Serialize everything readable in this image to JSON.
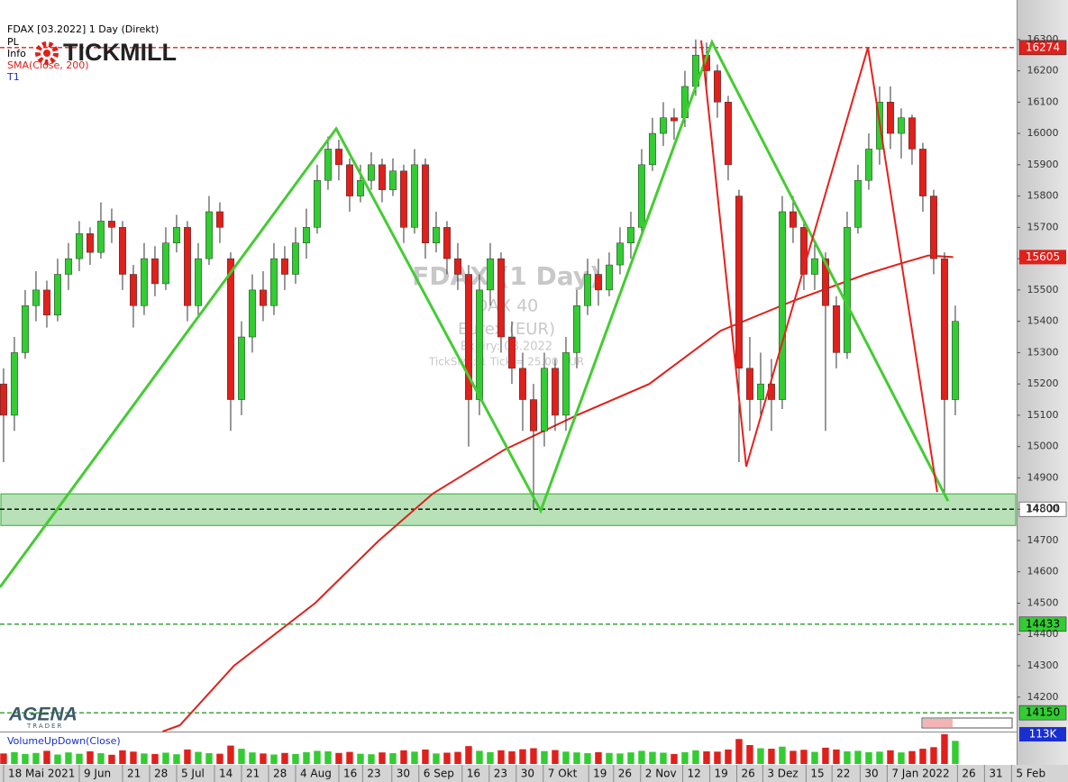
{
  "chart_data": {
    "type": "candlestick",
    "title": "FDAX [03.2022] 1 Day (Direkt)",
    "header_lines": [
      {
        "text": "PL",
        "color": "#000000"
      },
      {
        "text": "Info",
        "color": "#000000"
      },
      {
        "text": "SMA(Close, 200)",
        "color": "#e0201b"
      },
      {
        "text": "T1",
        "color": "#1a2fd0"
      }
    ],
    "logos": [
      "TICKMILL",
      "AGENA",
      "TRADER"
    ],
    "watermark": [
      "FDAX (1 Day)",
      "DAX 40",
      "Eurex (EUR)",
      "Expiry: 03.2022",
      "TickSize: 1 Tick = 25.00 EUR"
    ],
    "up_color": "#33cc33",
    "down_color": "#e0201b",
    "xlim": [
      -0.33,
      93.67
    ],
    "ylim": [
      14090,
      16426
    ],
    "yticks": [
      14200,
      14300,
      14400,
      14500,
      14600,
      14700,
      14800,
      14900,
      15000,
      15100,
      15200,
      15300,
      15400,
      15500,
      15600,
      15700,
      15800,
      15900,
      16000,
      16100,
      16200,
      16300
    ],
    "xticks": [
      {
        "value": 0,
        "label": "18 Mai 2021"
      },
      {
        "value": 7,
        "label": "9 Jun"
      },
      {
        "value": 11,
        "label": "21"
      },
      {
        "value": 13.5,
        "label": "28"
      },
      {
        "value": 16,
        "label": "5 Jul"
      },
      {
        "value": 19.5,
        "label": "14"
      },
      {
        "value": 22,
        "label": "21"
      },
      {
        "value": 24.5,
        "label": "28"
      },
      {
        "value": 27,
        "label": "4 Aug"
      },
      {
        "value": 31,
        "label": "16"
      },
      {
        "value": 33.2,
        "label": "23"
      },
      {
        "value": 35.9,
        "label": "30"
      },
      {
        "value": 38.4,
        "label": "6 Sep"
      },
      {
        "value": 42.4,
        "label": "16"
      },
      {
        "value": 44.9,
        "label": "23"
      },
      {
        "value": 47.4,
        "label": "30"
      },
      {
        "value": 49.9,
        "label": "7 Okt"
      },
      {
        "value": 54.1,
        "label": "19"
      },
      {
        "value": 56.4,
        "label": "26"
      },
      {
        "value": 58.9,
        "label": "2 Nov"
      },
      {
        "value": 62.8,
        "label": "12"
      },
      {
        "value": 65.3,
        "label": "19"
      },
      {
        "value": 67.8,
        "label": "26"
      },
      {
        "value": 70.2,
        "label": "3 Dez"
      },
      {
        "value": 74.2,
        "label": "15"
      },
      {
        "value": 76.6,
        "label": "22"
      },
      {
        "value": 79.2,
        "label": "30"
      },
      {
        "value": 81.7,
        "label": "7 Jan 2022"
      },
      {
        "value": 88.2,
        "label": "26"
      },
      {
        "value": 90.7,
        "label": "31"
      },
      {
        "value": 93.2,
        "label": "5 Feb"
      }
    ],
    "candles": [
      [
        15200,
        15250,
        14950,
        15100
      ],
      [
        15100,
        15350,
        15050,
        15300
      ],
      [
        15300,
        15500,
        15280,
        15450
      ],
      [
        15450,
        15560,
        15400,
        15500
      ],
      [
        15500,
        15530,
        15380,
        15420
      ],
      [
        15420,
        15600,
        15400,
        15550
      ],
      [
        15550,
        15650,
        15500,
        15600
      ],
      [
        15600,
        15720,
        15560,
        15680
      ],
      [
        15680,
        15700,
        15580,
        15620
      ],
      [
        15620,
        15780,
        15600,
        15720
      ],
      [
        15720,
        15760,
        15650,
        15700
      ],
      [
        15700,
        15720,
        15500,
        15550
      ],
      [
        15550,
        15580,
        15380,
        15450
      ],
      [
        15450,
        15650,
        15420,
        15600
      ],
      [
        15600,
        15640,
        15480,
        15520
      ],
      [
        15520,
        15700,
        15500,
        15650
      ],
      [
        15650,
        15740,
        15620,
        15700
      ],
      [
        15700,
        15720,
        15400,
        15450
      ],
      [
        15450,
        15650,
        15420,
        15600
      ],
      [
        15600,
        15800,
        15580,
        15750
      ],
      [
        15750,
        15780,
        15650,
        15700
      ],
      [
        15600,
        15620,
        15050,
        15150
      ],
      [
        15150,
        15400,
        15100,
        15350
      ],
      [
        15350,
        15550,
        15300,
        15500
      ],
      [
        15500,
        15560,
        15400,
        15450
      ],
      [
        15450,
        15650,
        15420,
        15600
      ],
      [
        15600,
        15640,
        15500,
        15550
      ],
      [
        15550,
        15700,
        15520,
        15650
      ],
      [
        15650,
        15760,
        15600,
        15700
      ],
      [
        15700,
        15900,
        15680,
        15850
      ],
      [
        15850,
        15990,
        15820,
        15950
      ],
      [
        15950,
        15980,
        15850,
        15900
      ],
      [
        15900,
        15920,
        15750,
        15800
      ],
      [
        15800,
        15900,
        15780,
        15850
      ],
      [
        15850,
        15940,
        15820,
        15900
      ],
      [
        15900,
        15920,
        15780,
        15820
      ],
      [
        15820,
        15920,
        15800,
        15880
      ],
      [
        15880,
        15900,
        15650,
        15700
      ],
      [
        15700,
        15950,
        15680,
        15900
      ],
      [
        15900,
        15920,
        15600,
        15650
      ],
      [
        15650,
        15750,
        15620,
        15700
      ],
      [
        15700,
        15720,
        15550,
        15600
      ],
      [
        15600,
        15650,
        15500,
        15550
      ],
      [
        15550,
        15580,
        15000,
        15150
      ],
      [
        15150,
        15550,
        15100,
        15500
      ],
      [
        15500,
        15650,
        15450,
        15600
      ],
      [
        15600,
        15620,
        15300,
        15350
      ],
      [
        15350,
        15400,
        15200,
        15250
      ],
      [
        15250,
        15300,
        15050,
        15150
      ],
      [
        15150,
        15200,
        14800,
        15050
      ],
      [
        15050,
        15300,
        15000,
        15250
      ],
      [
        15250,
        15280,
        15050,
        15100
      ],
      [
        15100,
        15350,
        15050,
        15300
      ],
      [
        15300,
        15500,
        15250,
        15450
      ],
      [
        15450,
        15600,
        15420,
        15550
      ],
      [
        15550,
        15600,
        15450,
        15500
      ],
      [
        15500,
        15620,
        15480,
        15580
      ],
      [
        15580,
        15700,
        15550,
        15650
      ],
      [
        15650,
        15750,
        15600,
        15700
      ],
      [
        15700,
        15950,
        15680,
        15900
      ],
      [
        15900,
        16050,
        15880,
        16000
      ],
      [
        16000,
        16100,
        15960,
        16050
      ],
      [
        16050,
        16080,
        15980,
        16040
      ],
      [
        16050,
        16200,
        16020,
        16150
      ],
      [
        16150,
        16300,
        16120,
        16250
      ],
      [
        16250,
        16290,
        16150,
        16200
      ],
      [
        16200,
        16220,
        16050,
        16100
      ],
      [
        16100,
        16120,
        15850,
        15900
      ],
      [
        15800,
        15820,
        14950,
        15250
      ],
      [
        15250,
        15350,
        15050,
        15150
      ],
      [
        15150,
        15300,
        15100,
        15200
      ],
      [
        15200,
        15280,
        15050,
        15150
      ],
      [
        15150,
        15800,
        15120,
        15750
      ],
      [
        15750,
        15800,
        15650,
        15700
      ],
      [
        15700,
        15720,
        15500,
        15550
      ],
      [
        15550,
        15650,
        15500,
        15600
      ],
      [
        15600,
        15620,
        15050,
        15450
      ],
      [
        15450,
        15480,
        15250,
        15300
      ],
      [
        15300,
        15750,
        15280,
        15700
      ],
      [
        15700,
        15900,
        15680,
        15850
      ],
      [
        15850,
        16000,
        15820,
        15950
      ],
      [
        15950,
        16150,
        15900,
        16100
      ],
      [
        16100,
        16150,
        15950,
        16000
      ],
      [
        16000,
        16080,
        15920,
        16050
      ],
      [
        16050,
        16060,
        15900,
        15950
      ],
      [
        15950,
        15970,
        15750,
        15800
      ],
      [
        15800,
        15820,
        15550,
        15600
      ],
      [
        15600,
        15620,
        14850,
        15150
      ],
      [
        15150,
        15450,
        15100,
        15400
      ]
    ],
    "sma": {
      "name": "SMA(Close, 200)",
      "color": "#e0201b",
      "x": [
        14.7,
        16.3,
        21.3,
        28.8,
        34.7,
        39.7,
        46.3,
        53,
        59.7,
        66.3,
        73,
        79.7,
        83,
        85.5,
        87.8
      ],
      "values": [
        14090,
        14110,
        14300,
        14500,
        14700,
        14850,
        14990,
        15100,
        15200,
        15370,
        15465,
        15550,
        15585,
        15610,
        15605
      ]
    },
    "patterns": [
      {
        "color": "#44cc33",
        "x": [
          -0.33,
          30.75,
          49.67,
          65.5,
          87.33
        ],
        "values": [
          14551,
          16015,
          14795,
          16291,
          14826
        ]
      },
      {
        "color": "#e8201c",
        "x": [
          64.5,
          68.67,
          79.92,
          86.33
        ],
        "values": [
          16297,
          14936,
          16274,
          14855
        ]
      }
    ],
    "zone": {
      "values": [
        14748,
        14849
      ],
      "color": "#33aa33"
    },
    "levels": [
      {
        "value": 16274,
        "color": "#e0201b",
        "label_fill": "#e0201b",
        "label_color": "#ffffff"
      },
      {
        "value": 14800,
        "color": "#000000",
        "label_fill": "#ffffff",
        "label_color": "#000000"
      },
      {
        "value": 14433,
        "color": "#2a9d2a",
        "label_fill": "#33cc33",
        "label_color": "#000000"
      },
      {
        "value": 14150,
        "color": "#2a9d2a",
        "label_fill": "#33cc33",
        "label_color": "#000000"
      }
    ],
    "volume": {
      "name": "VolumeUpDown(Close)",
      "ylim": [
        0,
        120
      ],
      "yticks": [
        {
          "value": 113,
          "label": "113K"
        }
      ],
      "label_fill": "#1a2fd0",
      "values": [
        40,
        45,
        38,
        42,
        50,
        36,
        44,
        39,
        48,
        41,
        35,
        52,
        47,
        40,
        38,
        43,
        37,
        55,
        46,
        41,
        39,
        70,
        58,
        44,
        40,
        36,
        42,
        38,
        45,
        50,
        48,
        42,
        46,
        39,
        37,
        44,
        41,
        52,
        47,
        55,
        40,
        43,
        46,
        68,
        50,
        45,
        52,
        48,
        56,
        60,
        49,
        53,
        47,
        44,
        41,
        45,
        42,
        40,
        44,
        50,
        46,
        43,
        38,
        45,
        52,
        48,
        47,
        55,
        95,
        72,
        60,
        58,
        66,
        50,
        54,
        46,
        62,
        55,
        48,
        50,
        45,
        47,
        52,
        44,
        49,
        58,
        64,
        113,
        88
      ]
    }
  }
}
